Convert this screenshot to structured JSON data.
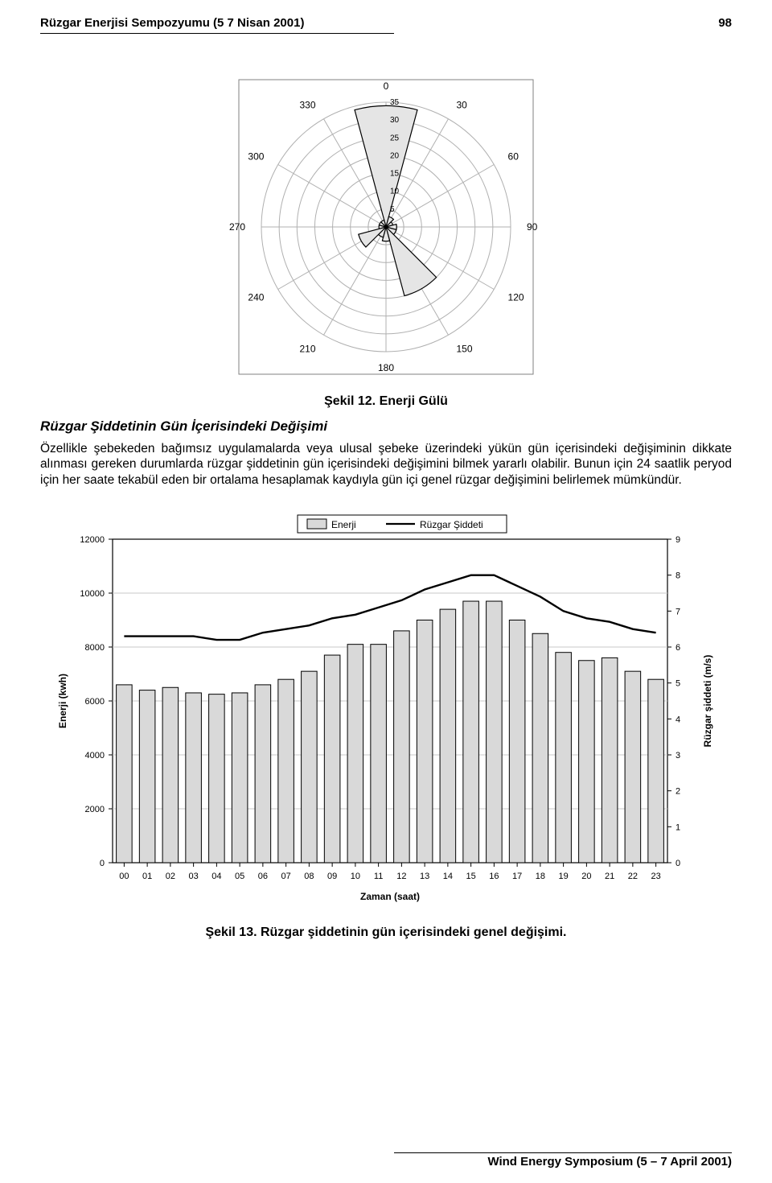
{
  "header": {
    "left": "Rüzgar Enerjisi Sempozyumu (5 7 Nisan 2001)",
    "pageno": "98"
  },
  "footer": {
    "text": "Wind Energy Symposium (5 – 7 April 2001)"
  },
  "polar": {
    "angle_labels": [
      "0",
      "30",
      "60",
      "90",
      "120",
      "150",
      "180",
      "210",
      "240",
      "270",
      "300",
      "330"
    ],
    "angle_deg": [
      0,
      30,
      60,
      90,
      120,
      150,
      180,
      210,
      240,
      270,
      300,
      330
    ],
    "ring_labels": [
      "5",
      "10",
      "15",
      "20",
      "25",
      "30",
      "35"
    ],
    "ring_values": [
      5,
      10,
      15,
      20,
      25,
      30,
      35
    ],
    "max_r": 35,
    "values": [
      34,
      3,
      2,
      3,
      3,
      20,
      4,
      3,
      8,
      2,
      2,
      2
    ],
    "frame_color": "#808080",
    "ring_color": "#b0b0b0",
    "fill_color": "#e5e5e5",
    "stroke_color": "#000000",
    "label_fontsize": 12,
    "axis_fontsize": 10
  },
  "caption12": "Şekil 12. Enerji Gülü",
  "section_title": "Rüzgar Şiddetinin Gün İçerisindeki Değişimi",
  "paragraph": "Özellikle şebekeden bağımsız uygulamalarda veya ulusal şebeke üzerindeki yükün gün içerisindeki değişiminin dikkate alınması gereken durumlarda rüzgar şiddetinin gün içerisindeki değişimini bilmek yararlı olabilir. Bunun için 24 saatlik peryod için her saate tekabül eden bir ortalama hesaplamak kaydıyla gün içi genel rüzgar değişimini belirlemek mümkündür.",
  "barchart": {
    "type": "bar+line",
    "legend": {
      "bar": "Enerji",
      "line": "Rüzgar Şiddeti",
      "fontsize": 12,
      "line_color": "#000000",
      "bar_fill": "#d9d9d9"
    },
    "x_labels": [
      "00",
      "01",
      "02",
      "03",
      "04",
      "05",
      "06",
      "07",
      "08",
      "09",
      "10",
      "11",
      "12",
      "13",
      "14",
      "15",
      "16",
      "17",
      "18",
      "19",
      "20",
      "21",
      "22",
      "23"
    ],
    "x_title": "Zaman (saat)",
    "y_left": {
      "title": "Enerji (kwh)",
      "min": 0,
      "max": 12000,
      "step": 2000,
      "ticks": [
        0,
        2000,
        4000,
        6000,
        8000,
        10000,
        12000
      ]
    },
    "y_right": {
      "title": "Rüzgar şiddeti (m/s)",
      "min": 0,
      "max": 9,
      "step": 1,
      "ticks": [
        0,
        1,
        2,
        3,
        4,
        5,
        6,
        7,
        8,
        9
      ]
    },
    "bar_values": [
      6600,
      6400,
      6500,
      6300,
      6250,
      6300,
      6600,
      6800,
      7100,
      7700,
      8100,
      8100,
      8600,
      9000,
      9400,
      9700,
      9700,
      9000,
      8500,
      7800,
      7500,
      7600,
      7100,
      6800
    ],
    "line_values": [
      6.3,
      6.3,
      6.3,
      6.3,
      6.2,
      6.2,
      6.4,
      6.5,
      6.6,
      6.8,
      6.9,
      7.1,
      7.3,
      7.6,
      7.8,
      8.0,
      8.0,
      7.7,
      7.4,
      7.0,
      6.8,
      6.7,
      6.5,
      6.4
    ],
    "bar_fill": "#d9d9d9",
    "bar_stroke": "#000000",
    "grid_color": "#c8c8c8",
    "axis_color": "#000000",
    "label_fontsize": 11,
    "title_fontsize": 12,
    "background": "#ffffff",
    "bar_width_ratio": 0.68
  },
  "caption13": "Şekil 13. Rüzgar şiddetinin gün içerisindeki genel değişimi."
}
